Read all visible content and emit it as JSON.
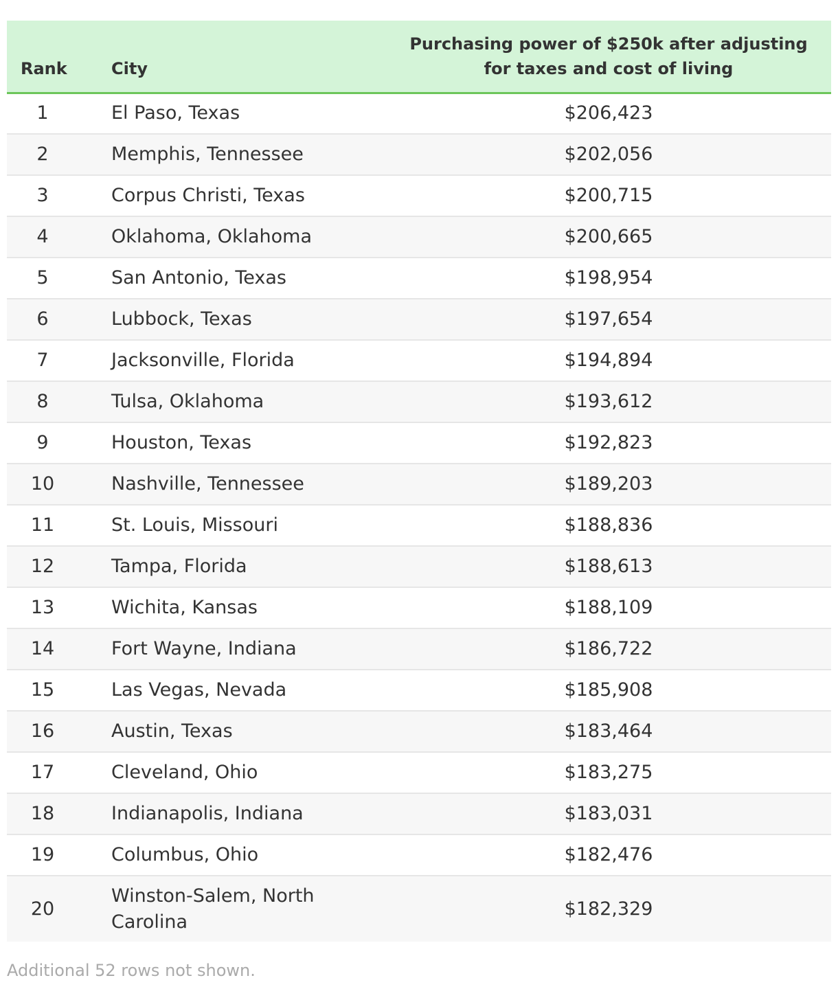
{
  "table": {
    "headers": {
      "rank": "Rank",
      "city": "City",
      "power": "Purchasing power of $250k after adjusting for taxes and cost of living"
    },
    "rows": [
      {
        "rank": "1",
        "city": "El Paso, Texas",
        "power": "$206,423"
      },
      {
        "rank": "2",
        "city": "Memphis, Tennessee",
        "power": "$202,056"
      },
      {
        "rank": "3",
        "city": "Corpus Christi, Texas",
        "power": "$200,715"
      },
      {
        "rank": "4",
        "city": "Oklahoma, Oklahoma",
        "power": "$200,665"
      },
      {
        "rank": "5",
        "city": "San Antonio, Texas",
        "power": "$198,954"
      },
      {
        "rank": "6",
        "city": "Lubbock, Texas",
        "power": "$197,654"
      },
      {
        "rank": "7",
        "city": "Jacksonville, Florida",
        "power": "$194,894"
      },
      {
        "rank": "8",
        "city": "Tulsa, Oklahoma",
        "power": "$193,612"
      },
      {
        "rank": "9",
        "city": "Houston, Texas",
        "power": "$192,823"
      },
      {
        "rank": "10",
        "city": "Nashville, Tennessee",
        "power": "$189,203"
      },
      {
        "rank": "11",
        "city": "St. Louis, Missouri",
        "power": "$188,836"
      },
      {
        "rank": "12",
        "city": "Tampa, Florida",
        "power": "$188,613"
      },
      {
        "rank": "13",
        "city": "Wichita, Kansas",
        "power": "$188,109"
      },
      {
        "rank": "14",
        "city": "Fort Wayne, Indiana",
        "power": "$186,722"
      },
      {
        "rank": "15",
        "city": "Las Vegas, Nevada",
        "power": "$185,908"
      },
      {
        "rank": "16",
        "city": "Austin, Texas",
        "power": "$183,464"
      },
      {
        "rank": "17",
        "city": "Cleveland, Ohio",
        "power": "$183,275"
      },
      {
        "rank": "18",
        "city": "Indianapolis, Indiana",
        "power": "$183,031"
      },
      {
        "rank": "19",
        "city": "Columbus, Ohio",
        "power": "$182,476"
      },
      {
        "rank": "20",
        "city": "Winston-Salem, North Carolina",
        "power": "$182,329"
      }
    ]
  },
  "footer": {
    "note": "Additional 52 rows not shown."
  },
  "colors": {
    "header_bg": "#d4f4d8",
    "header_border": "#6cc65a",
    "stripe": "#f7f7f7",
    "note_text": "#aaaaaa"
  }
}
